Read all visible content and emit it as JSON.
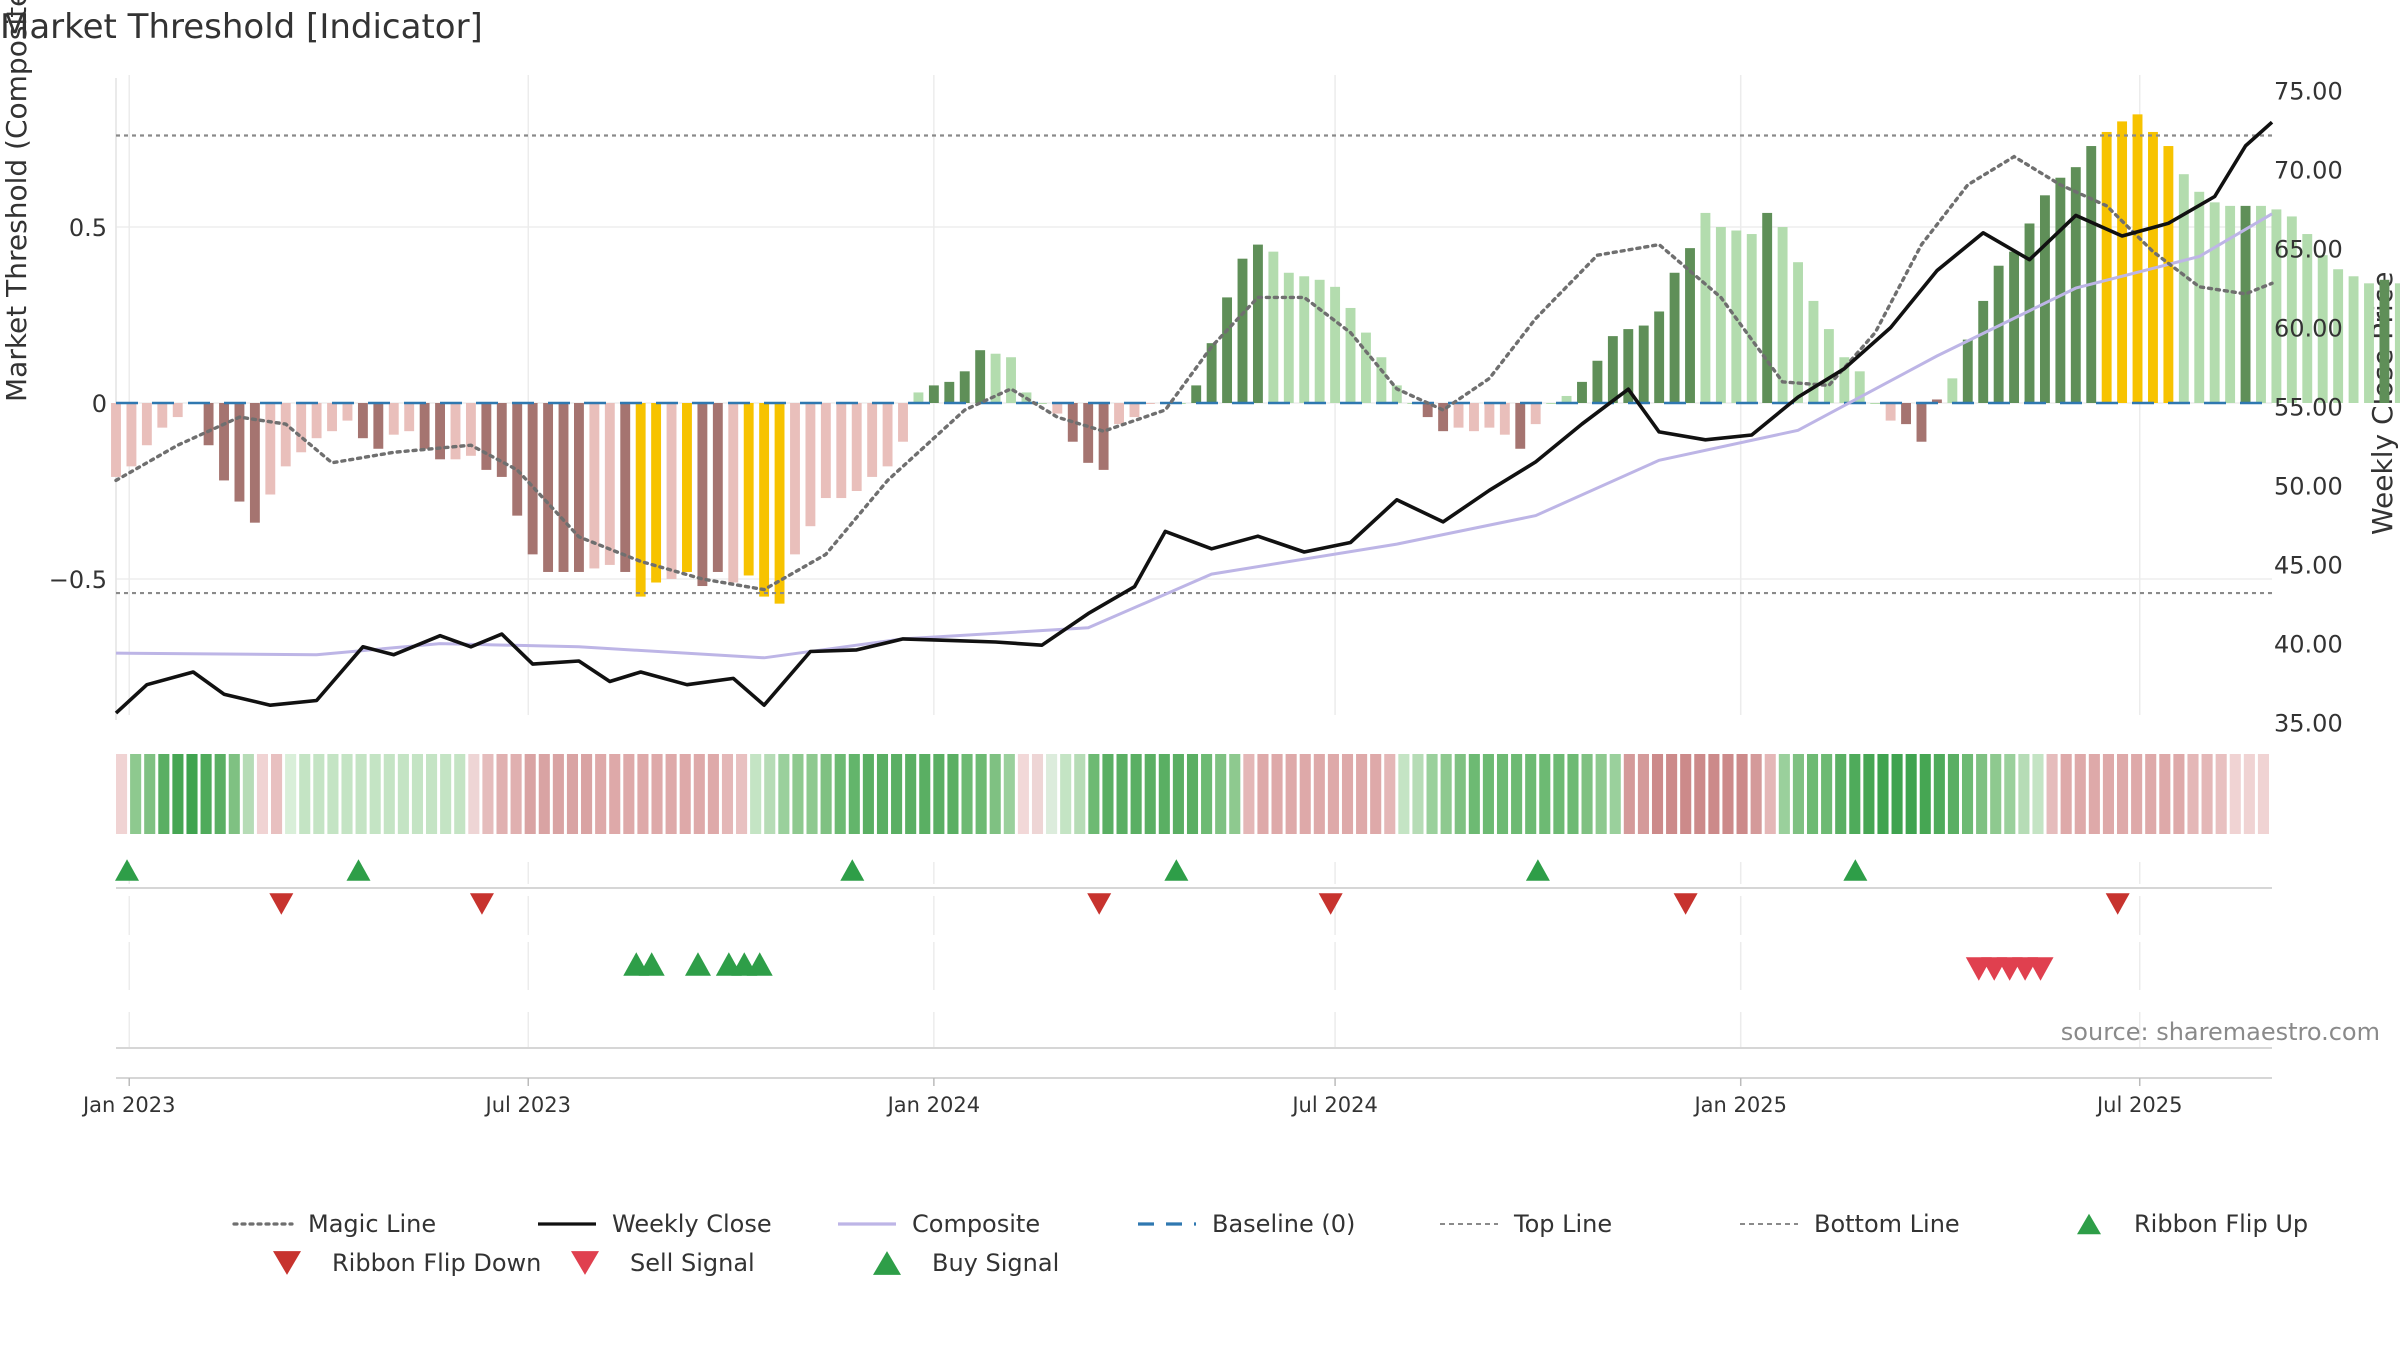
{
  "chart_data": {
    "type": "bar",
    "title": "Market Threshold [Indicator]",
    "ylabel": "Market Threshold (Composite)",
    "y2label": "Weekly Close Price",
    "ylim": [
      -0.9,
      0.92
    ],
    "y2lim": [
      33.0,
      76.5
    ],
    "yticks": [
      {
        "v": 0.5,
        "label": "0.5"
      },
      {
        "v": 0,
        "label": "0"
      },
      {
        "v": -0.5,
        "label": "−0.5"
      }
    ],
    "y2ticks": [
      "75.00",
      "70.00",
      "65.00",
      "60.00",
      "55.00",
      "50.00",
      "45.00",
      "40.00",
      "35.00"
    ],
    "x_range": [
      "2022-12-26",
      "2025-08-30"
    ],
    "x_ticks": [
      {
        "date": "2023-01-01",
        "label": "Jan 2023"
      },
      {
        "date": "2023-07-01",
        "label": "Jul 2023"
      },
      {
        "date": "2024-01-01",
        "label": "Jan 2024"
      },
      {
        "date": "2024-07-01",
        "label": "Jul 2024"
      },
      {
        "date": "2025-01-01",
        "label": "Jan 2025"
      },
      {
        "date": "2025-07-01",
        "label": "Jul 2025"
      }
    ],
    "grid": true,
    "first_week": "2022-12-26",
    "top_line": 0.76,
    "bottom_line": -0.54,
    "baseline": 0,
    "composite_values": [
      -0.21,
      -0.18,
      -0.12,
      -0.07,
      -0.04,
      0.0,
      -0.12,
      -0.22,
      -0.28,
      -0.34,
      -0.26,
      -0.18,
      -0.14,
      -0.1,
      -0.08,
      -0.05,
      -0.1,
      -0.13,
      -0.09,
      -0.08,
      -0.13,
      -0.16,
      -0.16,
      -0.15,
      -0.19,
      -0.21,
      -0.32,
      -0.43,
      -0.48,
      -0.48,
      -0.48,
      -0.47,
      -0.46,
      -0.48,
      -0.55,
      -0.51,
      -0.5,
      -0.48,
      -0.52,
      -0.48,
      -0.51,
      -0.49,
      -0.55,
      -0.57,
      -0.43,
      -0.35,
      -0.27,
      -0.27,
      -0.25,
      -0.21,
      -0.18,
      -0.11,
      0.03,
      0.05,
      0.06,
      0.09,
      0.15,
      0.14,
      0.13,
      0.03,
      0.0,
      -0.03,
      -0.11,
      -0.17,
      -0.19,
      -0.06,
      -0.04,
      0.0,
      0.0,
      0.0,
      0.05,
      0.17,
      0.3,
      0.41,
      0.45,
      0.43,
      0.37,
      0.36,
      0.35,
      0.33,
      0.27,
      0.2,
      0.13,
      0.05,
      0.0,
      -0.04,
      -0.08,
      -0.07,
      -0.08,
      -0.07,
      -0.09,
      -0.13,
      -0.06,
      0.0,
      0.02,
      0.06,
      0.12,
      0.19,
      0.21,
      0.22,
      0.26,
      0.37,
      0.44,
      0.54,
      0.5,
      0.49,
      0.48,
      0.54,
      0.5,
      0.4,
      0.29,
      0.21,
      0.13,
      0.09,
      0.0,
      -0.05,
      -0.06,
      -0.11,
      0.01,
      0.07,
      0.18,
      0.29,
      0.39,
      0.43,
      0.51,
      0.59,
      0.64,
      0.67,
      0.73,
      0.77,
      0.8,
      0.82,
      0.77,
      0.73,
      0.65,
      0.6,
      0.57,
      0.56,
      0.56,
      0.56,
      0.55,
      0.53,
      0.48,
      0.42,
      0.38,
      0.36,
      0.34,
      0.35,
      0.34,
      0.36,
      0.36,
      0.37,
      0.39,
      0.41,
      0.48
    ],
    "bar_colors": {
      "strong_pos": "#5f8f58",
      "weak_pos": "#b3dcae",
      "strong_neg": "#a57470",
      "weak_neg": "#e9bfbb",
      "extreme": "#f7c300"
    },
    "bar_classes": [
      "wn",
      "wn",
      "wn",
      "wn",
      "wn",
      "wn",
      "sn",
      "sn",
      "sn",
      "sn",
      "wn",
      "wn",
      "wn",
      "wn",
      "wn",
      "wn",
      "sn",
      "sn",
      "wn",
      "wn",
      "sn",
      "sn",
      "wn",
      "wn",
      "sn",
      "sn",
      "sn",
      "sn",
      "sn",
      "sn",
      "sn",
      "wn",
      "wn",
      "sn",
      "ex",
      "ex",
      "wn",
      "ex",
      "sn",
      "sn",
      "wn",
      "ex",
      "ex",
      "ex",
      "wn",
      "wn",
      "wn",
      "wn",
      "wn",
      "wn",
      "wn",
      "wn",
      "wp",
      "sp",
      "sp",
      "sp",
      "sp",
      "wp",
      "wp",
      "wp",
      "wp",
      "wn",
      "sn",
      "sn",
      "sn",
      "wn",
      "wn",
      "wn",
      "wp",
      "wp",
      "sp",
      "sp",
      "sp",
      "sp",
      "sp",
      "wp",
      "wp",
      "wp",
      "wp",
      "wp",
      "wp",
      "wp",
      "wp",
      "wp",
      "wp",
      "sn",
      "sn",
      "wn",
      "wn",
      "wn",
      "wn",
      "sn",
      "wn",
      "wp",
      "wp",
      "sp",
      "sp",
      "sp",
      "sp",
      "sp",
      "sp",
      "sp",
      "sp",
      "wp",
      "wp",
      "wp",
      "wp",
      "sp",
      "wp",
      "wp",
      "wp",
      "wp",
      "wp",
      "wp",
      "wp",
      "wn",
      "sn",
      "sn",
      "sn",
      "wp",
      "sp",
      "sp",
      "sp",
      "sp",
      "sp",
      "sp",
      "sp",
      "sp",
      "sp",
      "ex",
      "ex",
      "ex",
      "ex",
      "ex",
      "wp",
      "wp",
      "wp",
      "wp",
      "sp",
      "wp",
      "wp",
      "wp",
      "wp",
      "wp",
      "wp",
      "wp",
      "wp",
      "sp",
      "wp",
      "sp",
      "sp",
      "sp",
      "sp",
      "sp",
      "sp",
      "sp"
    ],
    "magic_line": [
      {
        "date": "2022-12-26",
        "value": -0.22
      },
      {
        "date": "2023-01-23",
        "value": -0.12
      },
      {
        "date": "2023-02-20",
        "value": -0.04
      },
      {
        "date": "2023-03-13",
        "value": -0.06
      },
      {
        "date": "2023-04-03",
        "value": -0.17
      },
      {
        "date": "2023-05-01",
        "value": -0.14
      },
      {
        "date": "2023-06-05",
        "value": -0.12
      },
      {
        "date": "2023-06-26",
        "value": -0.19
      },
      {
        "date": "2023-07-24",
        "value": -0.38
      },
      {
        "date": "2023-08-21",
        "value": -0.45
      },
      {
        "date": "2023-09-18",
        "value": -0.5
      },
      {
        "date": "2023-10-16",
        "value": -0.53
      },
      {
        "date": "2023-11-13",
        "value": -0.43
      },
      {
        "date": "2023-12-11",
        "value": -0.22
      },
      {
        "date": "2024-01-15",
        "value": -0.02
      },
      {
        "date": "2024-02-05",
        "value": 0.04
      },
      {
        "date": "2024-02-26",
        "value": -0.04
      },
      {
        "date": "2024-03-18",
        "value": -0.08
      },
      {
        "date": "2024-04-15",
        "value": -0.02
      },
      {
        "date": "2024-05-06",
        "value": 0.16
      },
      {
        "date": "2024-05-27",
        "value": 0.3
      },
      {
        "date": "2024-06-17",
        "value": 0.3
      },
      {
        "date": "2024-07-08",
        "value": 0.2
      },
      {
        "date": "2024-07-29",
        "value": 0.04
      },
      {
        "date": "2024-08-19",
        "value": -0.02
      },
      {
        "date": "2024-09-09",
        "value": 0.07
      },
      {
        "date": "2024-09-30",
        "value": 0.24
      },
      {
        "date": "2024-10-28",
        "value": 0.42
      },
      {
        "date": "2024-11-25",
        "value": 0.45
      },
      {
        "date": "2024-12-23",
        "value": 0.3
      },
      {
        "date": "2025-01-20",
        "value": 0.06
      },
      {
        "date": "2025-02-10",
        "value": 0.05
      },
      {
        "date": "2025-03-03",
        "value": 0.2
      },
      {
        "date": "2025-03-24",
        "value": 0.45
      },
      {
        "date": "2025-04-14",
        "value": 0.62
      },
      {
        "date": "2025-05-05",
        "value": 0.7
      },
      {
        "date": "2025-05-26",
        "value": 0.62
      },
      {
        "date": "2025-06-16",
        "value": 0.56
      },
      {
        "date": "2025-07-07",
        "value": 0.43
      },
      {
        "date": "2025-07-28",
        "value": 0.33
      },
      {
        "date": "2025-08-18",
        "value": 0.31
      },
      {
        "date": "2025-08-30",
        "value": 0.34
      }
    ],
    "weekly_close": [
      {
        "date": "2022-12-26",
        "value": 35.6
      },
      {
        "date": "2023-01-09",
        "value": 37.4
      },
      {
        "date": "2023-01-30",
        "value": 38.2
      },
      {
        "date": "2023-02-13",
        "value": 36.8
      },
      {
        "date": "2023-03-06",
        "value": 36.1
      },
      {
        "date": "2023-03-27",
        "value": 36.4
      },
      {
        "date": "2023-04-17",
        "value": 39.8
      },
      {
        "date": "2023-05-01",
        "value": 39.3
      },
      {
        "date": "2023-05-22",
        "value": 40.5
      },
      {
        "date": "2023-06-05",
        "value": 39.8
      },
      {
        "date": "2023-06-19",
        "value": 40.6
      },
      {
        "date": "2023-07-03",
        "value": 38.7
      },
      {
        "date": "2023-07-24",
        "value": 38.9
      },
      {
        "date": "2023-08-07",
        "value": 37.6
      },
      {
        "date": "2023-08-21",
        "value": 38.2
      },
      {
        "date": "2023-09-11",
        "value": 37.4
      },
      {
        "date": "2023-10-02",
        "value": 37.8
      },
      {
        "date": "2023-10-16",
        "value": 36.1
      },
      {
        "date": "2023-11-06",
        "value": 39.5
      },
      {
        "date": "2023-11-27",
        "value": 39.6
      },
      {
        "date": "2023-12-18",
        "value": 40.3
      },
      {
        "date": "2024-01-08",
        "value": 40.2
      },
      {
        "date": "2024-01-29",
        "value": 40.1
      },
      {
        "date": "2024-02-19",
        "value": 39.9
      },
      {
        "date": "2024-03-11",
        "value": 41.9
      },
      {
        "date": "2024-04-01",
        "value": 43.6
      },
      {
        "date": "2024-04-15",
        "value": 47.1
      },
      {
        "date": "2024-05-06",
        "value": 46.0
      },
      {
        "date": "2024-05-27",
        "value": 46.8
      },
      {
        "date": "2024-06-17",
        "value": 45.8
      },
      {
        "date": "2024-07-08",
        "value": 46.4
      },
      {
        "date": "2024-07-29",
        "value": 49.1
      },
      {
        "date": "2024-08-19",
        "value": 47.7
      },
      {
        "date": "2024-09-09",
        "value": 49.7
      },
      {
        "date": "2024-09-30",
        "value": 51.5
      },
      {
        "date": "2024-10-21",
        "value": 53.9
      },
      {
        "date": "2024-11-11",
        "value": 56.1
      },
      {
        "date": "2024-11-25",
        "value": 53.4
      },
      {
        "date": "2024-12-16",
        "value": 52.9
      },
      {
        "date": "2025-01-06",
        "value": 53.2
      },
      {
        "date": "2025-01-27",
        "value": 55.6
      },
      {
        "date": "2025-02-17",
        "value": 57.4
      },
      {
        "date": "2025-03-10",
        "value": 60.0
      },
      {
        "date": "2025-03-31",
        "value": 63.6
      },
      {
        "date": "2025-04-21",
        "value": 66.0
      },
      {
        "date": "2025-05-12",
        "value": 64.3
      },
      {
        "date": "2025-06-02",
        "value": 67.1
      },
      {
        "date": "2025-06-23",
        "value": 65.8
      },
      {
        "date": "2025-07-14",
        "value": 66.6
      },
      {
        "date": "2025-08-04",
        "value": 68.3
      },
      {
        "date": "2025-08-18",
        "value": 71.5
      },
      {
        "date": "2025-08-30",
        "value": 73.0
      }
    ],
    "composite_line": [
      {
        "date": "2022-12-26",
        "value": 39.4
      },
      {
        "date": "2023-03-27",
        "value": 39.3
      },
      {
        "date": "2023-05-22",
        "value": 40.0
      },
      {
        "date": "2023-07-24",
        "value": 39.8
      },
      {
        "date": "2023-10-16",
        "value": 39.1
      },
      {
        "date": "2023-12-18",
        "value": 40.3
      },
      {
        "date": "2024-03-11",
        "value": 41.0
      },
      {
        "date": "2024-05-06",
        "value": 44.4
      },
      {
        "date": "2024-07-29",
        "value": 46.3
      },
      {
        "date": "2024-09-30",
        "value": 48.1
      },
      {
        "date": "2024-11-25",
        "value": 51.6
      },
      {
        "date": "2025-01-27",
        "value": 53.5
      },
      {
        "date": "2025-03-31",
        "value": 58.2
      },
      {
        "date": "2025-06-02",
        "value": 62.5
      },
      {
        "date": "2025-07-28",
        "value": 64.5
      },
      {
        "date": "2025-08-30",
        "value": 67.2
      }
    ],
    "ribbon_colors": [
      "#f0d3d3",
      "#8ec98f",
      "#7fc182",
      "#5aaf63",
      "#46a653",
      "#3fa34f",
      "#4fab5b",
      "#5aaf63",
      "#7fc182",
      "#b6dcb6",
      "#f0d3d3",
      "#e8c0c0",
      "#d9efd9",
      "#c4e4c4",
      "#c4e4c4",
      "#c4e4c4",
      "#c4e4c4",
      "#c4e4c4",
      "#c4e4c4",
      "#c4e4c4",
      "#c4e4c4",
      "#c4e4c4",
      "#c4e4c4",
      "#c4e4c4",
      "#c4e4c4",
      "#eed5d5",
      "#e5bcbc",
      "#e0b0b0",
      "#e0b0b0",
      "#d9a3a3",
      "#d9a3a3",
      "#d9a3a3",
      "#d9a3a3",
      "#d9a3a3",
      "#dea9a9",
      "#dea9a9",
      "#dea9a9",
      "#dea9a9",
      "#dea9a9",
      "#dea9a9",
      "#dea9a9",
      "#dea9a9",
      "#dea9a9",
      "#e4b7b7",
      "#e8c0c0",
      "#c4e4c4",
      "#b6dcb6",
      "#9ad09c",
      "#8ec98f",
      "#8ec98f",
      "#7fc182",
      "#6dba73",
      "#63b56b",
      "#5aaf63",
      "#5aaf63",
      "#5aaf63",
      "#5aaf63",
      "#5aaf63",
      "#5aaf63",
      "#5aaf63",
      "#6dba73",
      "#6dba73",
      "#7fc182",
      "#9ad09c",
      "#f2d8d8",
      "#eed5d5",
      "#dcecdc",
      "#c4e4c4",
      "#b6dcb6",
      "#6dba73",
      "#5aaf63",
      "#5aaf63",
      "#5aaf63",
      "#5aaf63",
      "#5aaf63",
      "#5aaf63",
      "#5aaf63",
      "#6dba73",
      "#7fc182",
      "#8ec98f",
      "#e4b7b7",
      "#dea9a9",
      "#dea9a9",
      "#dea9a9",
      "#dea9a9",
      "#dea9a9",
      "#dea9a9",
      "#dea9a9",
      "#dea9a9",
      "#dea9a9",
      "#e4b7b7",
      "#c4e4c4",
      "#b6dcb6",
      "#9ad09c",
      "#8ec98f",
      "#7fc182",
      "#6dba73",
      "#6dba73",
      "#6dba73",
      "#6dba73",
      "#6dba73",
      "#6dba73",
      "#6dba73",
      "#6dba73",
      "#7fc182",
      "#8ec98f",
      "#9ad09c",
      "#d49a9a",
      "#d49a9a",
      "#cc8a8a",
      "#cc8a8a",
      "#cc8a8a",
      "#cc8a8a",
      "#cc8a8a",
      "#cc8a8a",
      "#cc8a8a",
      "#d49a9a",
      "#e4b7b7",
      "#9ad09c",
      "#7fc182",
      "#6dba73",
      "#6dba73",
      "#5aaf63",
      "#4fab5b",
      "#46a653",
      "#3fa34f",
      "#3fa34f",
      "#3fa34f",
      "#46a653",
      "#4fab5b",
      "#5aaf63",
      "#6dba73",
      "#7fc182",
      "#8ec98f",
      "#9ad09c",
      "#b6dcb6",
      "#c4e4c4",
      "#e5bcbc",
      "#dea9a9",
      "#dea9a9",
      "#dea9a9",
      "#dea9a9",
      "#dea9a9",
      "#dea9a9",
      "#dea9a9",
      "#dea9a9",
      "#dea9a9",
      "#e4b7b7",
      "#e4b7b7",
      "#e8c0c0",
      "#f0d3d3",
      "#f0d3d3",
      "#f0d3d3"
    ],
    "ribbon_flip_up": [
      "2022-12-31",
      "2023-04-15",
      "2023-11-25",
      "2024-04-20",
      "2024-10-01",
      "2025-02-22"
    ],
    "ribbon_flip_down": [
      "2023-03-11",
      "2023-06-10",
      "2024-03-16",
      "2024-06-29",
      "2024-12-07",
      "2025-06-21"
    ],
    "buy_signals": [
      "2023-08-19",
      "2023-08-26",
      "2023-09-16",
      "2023-09-30",
      "2023-10-07",
      "2023-10-14"
    ],
    "sell_signals": [
      "2025-04-19",
      "2025-04-26",
      "2025-05-03",
      "2025-05-10",
      "2025-05-17"
    ],
    "colors": {
      "magic": "#6f6f6f",
      "close": "#111111",
      "composite": "#bdb5e6",
      "baseline": "#2f78b0",
      "levels": "#8a8a8a",
      "up": "#2e9e48",
      "flip_down": "#c7332e",
      "sell": "#e0404f",
      "buy": "#2e9e48"
    }
  },
  "source": "source: sharemaestro.com",
  "legend": [
    {
      "label": "Magic Line",
      "symbol": "dotted-line",
      "color": "#6f6f6f"
    },
    {
      "label": "Weekly Close",
      "symbol": "solid-line",
      "color": "#111111"
    },
    {
      "label": "Composite",
      "symbol": "solid-line",
      "color": "#bdb5e6"
    },
    {
      "label": "Baseline (0)",
      "symbol": "dashed-line",
      "color": "#2f78b0"
    },
    {
      "label": "Top Line",
      "symbol": "fine-dashed-line",
      "color": "#8a8a8a"
    },
    {
      "label": "Bottom Line",
      "symbol": "fine-dashed-line",
      "color": "#8a8a8a"
    },
    {
      "label": "Ribbon Flip Up",
      "symbol": "triangle-up",
      "color": "#2e9e48"
    },
    {
      "label": "Ribbon Flip Down",
      "symbol": "triangle-down",
      "color": "#c7332e"
    },
    {
      "label": "Sell Signal",
      "symbol": "triangle-down",
      "color": "#e0404f"
    },
    {
      "label": "Buy Signal",
      "symbol": "triangle-up",
      "color": "#2e9e48"
    }
  ]
}
